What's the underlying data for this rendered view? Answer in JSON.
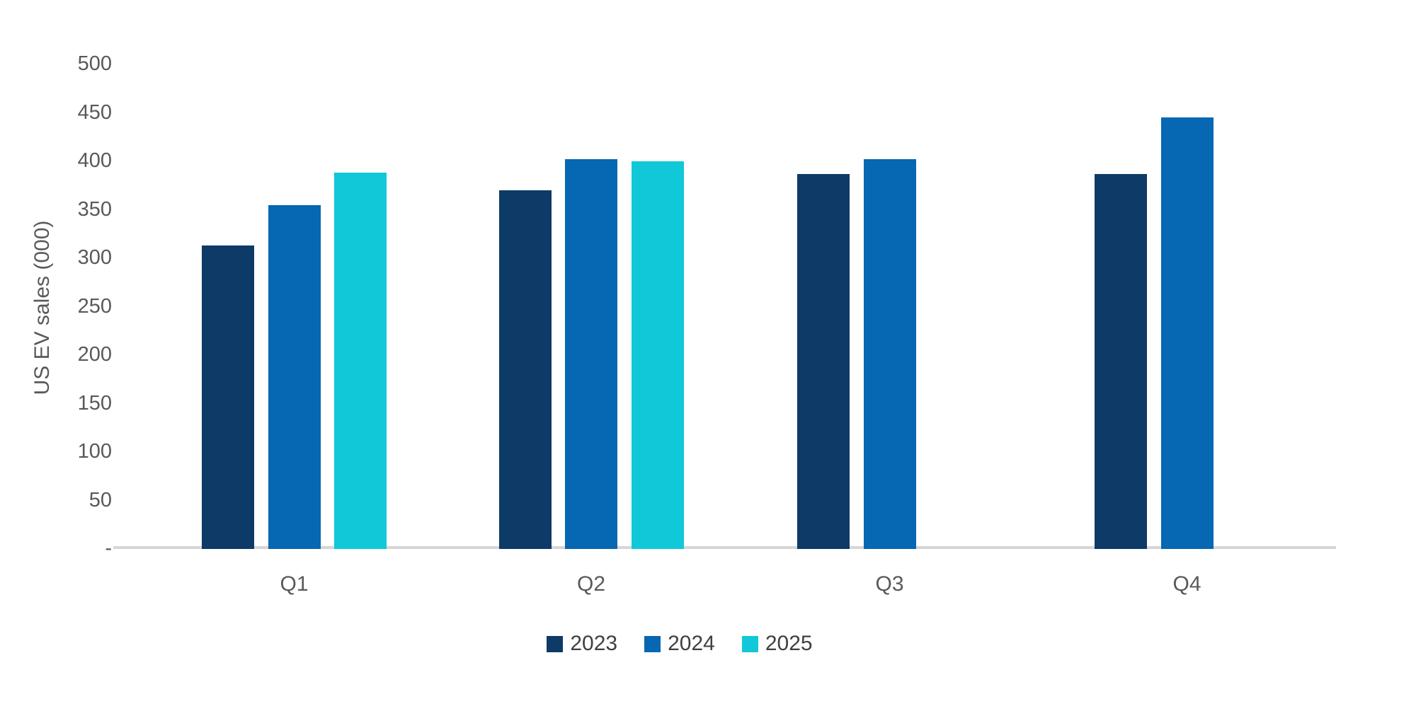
{
  "chart_data": {
    "type": "bar",
    "title": "",
    "xlabel": "",
    "ylabel": "US EV sales (000)",
    "categories": [
      "Q1",
      "Q2",
      "Q3",
      "Q4"
    ],
    "series": [
      {
        "name": "2023",
        "color": "#0d3a66",
        "values": [
          313,
          370,
          387,
          387
        ]
      },
      {
        "name": "2024",
        "color": "#0667b2",
        "values": [
          355,
          402,
          402,
          445
        ]
      },
      {
        "name": "2025",
        "color": "#10c8d8",
        "values": [
          388,
          400,
          null,
          null
        ]
      }
    ],
    "ylim": [
      0,
      500
    ],
    "ytick_values": [
      0,
      50,
      100,
      150,
      200,
      250,
      300,
      350,
      400,
      450,
      500
    ],
    "ytick_labels": [
      "-",
      "50",
      "100",
      "150",
      "200",
      "250",
      "300",
      "350",
      "400",
      "450",
      "500"
    ],
    "grid": false,
    "legend_position": "bottom",
    "colors": {
      "axis_line": "#d6d6d6",
      "tick_label": "#595959",
      "axis_title": "#595959",
      "legend_text": "#404040",
      "background": "#ffffff"
    }
  }
}
